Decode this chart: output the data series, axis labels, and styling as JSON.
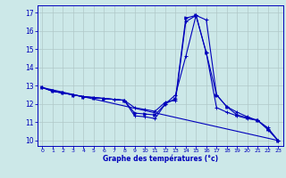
{
  "xlabel": "Graphe des températures (°c)",
  "background_color": "#cce8e8",
  "line_color": "#0000bb",
  "grid_color": "#b0c8c8",
  "xlim": [
    -0.5,
    23.5
  ],
  "ylim": [
    9.7,
    17.4
  ],
  "yticks": [
    10,
    11,
    12,
    13,
    14,
    15,
    16,
    17
  ],
  "xticks": [
    0,
    1,
    2,
    3,
    4,
    5,
    6,
    7,
    8,
    9,
    10,
    11,
    12,
    13,
    14,
    15,
    16,
    17,
    18,
    19,
    20,
    21,
    22,
    23
  ],
  "series": [
    {
      "x": [
        0,
        1,
        2,
        3,
        4,
        5,
        6,
        7,
        8,
        9,
        10,
        11,
        12,
        13,
        14,
        15,
        16,
        17,
        18,
        19,
        20,
        21,
        22,
        23
      ],
      "y": [
        12.9,
        12.7,
        12.6,
        12.5,
        12.4,
        12.35,
        12.3,
        12.25,
        12.2,
        11.8,
        11.7,
        11.6,
        12.1,
        12.2,
        16.5,
        16.85,
        14.8,
        11.8,
        11.55,
        11.35,
        11.2,
        11.1,
        10.6,
        10.0
      ],
      "marker": "+"
    },
    {
      "x": [
        0,
        1,
        2,
        3,
        4,
        5,
        6,
        7,
        8,
        9,
        10,
        11,
        12,
        13,
        14,
        15,
        16,
        17,
        18,
        19,
        20,
        21,
        22,
        23
      ],
      "y": [
        12.9,
        12.7,
        12.6,
        12.5,
        12.4,
        12.35,
        12.3,
        12.25,
        12.2,
        11.35,
        11.3,
        11.2,
        12.0,
        12.5,
        14.6,
        16.85,
        16.6,
        12.5,
        11.85,
        11.55,
        11.3,
        11.1,
        10.7,
        10.0
      ],
      "marker": "+"
    },
    {
      "x": [
        0,
        1,
        2,
        3,
        4,
        5,
        6,
        8,
        9,
        10,
        11,
        12,
        13,
        14,
        15,
        16,
        17,
        18,
        19,
        20,
        21,
        22,
        23
      ],
      "y": [
        12.9,
        12.7,
        12.6,
        12.5,
        12.4,
        12.35,
        12.3,
        12.2,
        11.5,
        11.45,
        11.4,
        12.0,
        12.3,
        16.7,
        16.85,
        14.8,
        12.5,
        11.85,
        11.4,
        11.25,
        11.1,
        10.65,
        10.0
      ],
      "marker": ">"
    },
    {
      "x": [
        0,
        23
      ],
      "y": [
        12.9,
        10.0
      ],
      "marker": null
    }
  ]
}
